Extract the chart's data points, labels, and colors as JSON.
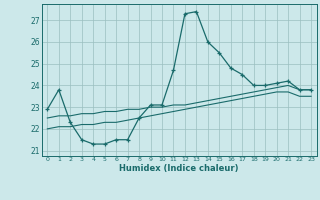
{
  "xlabel": "Humidex (Indice chaleur)",
  "bg_color": "#cce8ea",
  "grid_color": "#9bbfc0",
  "line_color": "#1a6b6b",
  "xlim": [
    -0.5,
    23.5
  ],
  "ylim": [
    20.75,
    27.75
  ],
  "yticks": [
    21,
    22,
    23,
    24,
    25,
    26,
    27
  ],
  "xticks": [
    0,
    1,
    2,
    3,
    4,
    5,
    6,
    7,
    8,
    9,
    10,
    11,
    12,
    13,
    14,
    15,
    16,
    17,
    18,
    19,
    20,
    21,
    22,
    23
  ],
  "line1_x": [
    0,
    1,
    2,
    3,
    4,
    5,
    6,
    7,
    8,
    9,
    10,
    11,
    12,
    13,
    14,
    15,
    16,
    17,
    18,
    19,
    20,
    21,
    22,
    23
  ],
  "line1_y": [
    22.9,
    23.8,
    22.3,
    21.5,
    21.3,
    21.3,
    21.5,
    21.5,
    22.5,
    23.1,
    23.1,
    24.7,
    27.3,
    27.4,
    26.0,
    25.5,
    24.8,
    24.5,
    24.0,
    24.0,
    24.1,
    24.2,
    23.8,
    23.8
  ],
  "line2_x": [
    0,
    1,
    2,
    3,
    4,
    5,
    6,
    7,
    8,
    9,
    10,
    11,
    12,
    13,
    14,
    15,
    16,
    17,
    18,
    19,
    20,
    21,
    22,
    23
  ],
  "line2_y": [
    22.5,
    22.6,
    22.6,
    22.7,
    22.7,
    22.8,
    22.8,
    22.9,
    22.9,
    23.0,
    23.0,
    23.1,
    23.1,
    23.2,
    23.3,
    23.4,
    23.5,
    23.6,
    23.7,
    23.8,
    23.9,
    24.0,
    23.8,
    23.8
  ],
  "line3_x": [
    0,
    1,
    2,
    3,
    4,
    5,
    6,
    7,
    8,
    9,
    10,
    11,
    12,
    13,
    14,
    15,
    16,
    17,
    18,
    19,
    20,
    21,
    22,
    23
  ],
  "line3_y": [
    22.0,
    22.1,
    22.1,
    22.2,
    22.2,
    22.3,
    22.3,
    22.4,
    22.5,
    22.6,
    22.7,
    22.8,
    22.9,
    23.0,
    23.1,
    23.2,
    23.3,
    23.4,
    23.5,
    23.6,
    23.7,
    23.7,
    23.5,
    23.5
  ]
}
